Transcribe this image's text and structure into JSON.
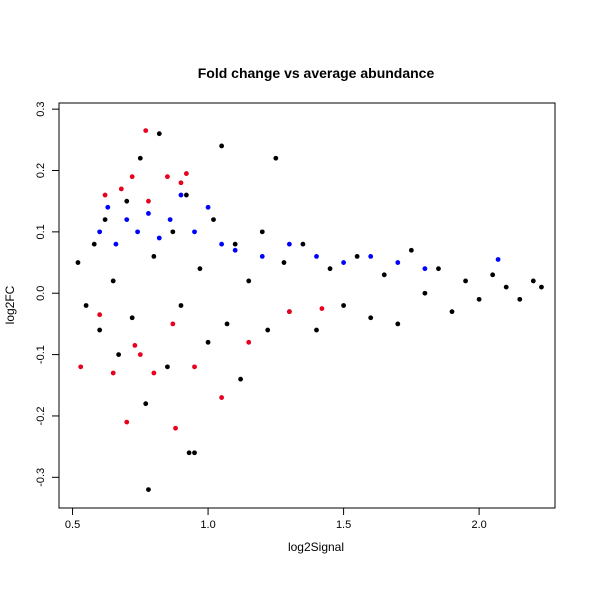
{
  "chart_data": {
    "type": "scatter",
    "title": "Fold change vs average abundance",
    "xlabel": "log2Signal",
    "ylabel": "log2FC",
    "xlim": [
      0.45,
      2.28
    ],
    "ylim": [
      -0.35,
      0.31
    ],
    "x_ticks": [
      0.5,
      1.0,
      1.5,
      2.0
    ],
    "x_tick_labels": [
      "0.5",
      "1.0",
      "1.5",
      "2.0"
    ],
    "y_ticks": [
      -0.3,
      -0.2,
      -0.1,
      0.0,
      0.1,
      0.2,
      0.3
    ],
    "y_tick_labels": [
      "-0.3",
      "-0.2",
      "-0.1",
      "0.0",
      "0.1",
      "0.2",
      "0.3"
    ],
    "grid": false,
    "legend": "none",
    "series": [
      {
        "color": "#000000",
        "points": [
          [
            0.52,
            0.05
          ],
          [
            0.55,
            -0.02
          ],
          [
            0.58,
            0.08
          ],
          [
            0.6,
            -0.06
          ],
          [
            0.62,
            0.12
          ],
          [
            0.65,
            0.02
          ],
          [
            0.67,
            -0.1
          ],
          [
            0.7,
            0.15
          ],
          [
            0.72,
            -0.04
          ],
          [
            0.75,
            0.22
          ],
          [
            0.77,
            -0.18
          ],
          [
            0.8,
            0.06
          ],
          [
            0.82,
            0.26
          ],
          [
            0.85,
            -0.12
          ],
          [
            0.87,
            0.1
          ],
          [
            0.9,
            -0.02
          ],
          [
            0.92,
            0.16
          ],
          [
            0.95,
            -0.26
          ],
          [
            0.97,
            0.04
          ],
          [
            1.0,
            -0.08
          ],
          [
            1.02,
            0.12
          ],
          [
            1.05,
            0.24
          ],
          [
            1.07,
            -0.05
          ],
          [
            1.1,
            0.08
          ],
          [
            1.12,
            -0.14
          ],
          [
            1.15,
            0.02
          ],
          [
            1.2,
            0.1
          ],
          [
            1.22,
            -0.06
          ],
          [
            1.25,
            0.22
          ],
          [
            1.28,
            0.05
          ],
          [
            1.3,
            -0.03
          ],
          [
            1.35,
            0.08
          ],
          [
            1.4,
            -0.06
          ],
          [
            1.45,
            0.04
          ],
          [
            1.5,
            -0.02
          ],
          [
            1.55,
            0.06
          ],
          [
            1.6,
            -0.04
          ],
          [
            1.65,
            0.03
          ],
          [
            1.7,
            -0.05
          ],
          [
            1.75,
            0.07
          ],
          [
            1.8,
            0.0
          ],
          [
            1.85,
            0.04
          ],
          [
            1.9,
            -0.03
          ],
          [
            1.95,
            0.02
          ],
          [
            2.0,
            -0.01
          ],
          [
            2.05,
            0.03
          ],
          [
            2.1,
            0.01
          ],
          [
            2.15,
            -0.01
          ],
          [
            2.2,
            0.02
          ],
          [
            2.23,
            0.01
          ],
          [
            0.78,
            -0.32
          ],
          [
            0.93,
            -0.26
          ]
        ]
      },
      {
        "color": "#0000ff",
        "points": [
          [
            0.6,
            0.1
          ],
          [
            0.63,
            0.14
          ],
          [
            0.66,
            0.08
          ],
          [
            0.7,
            0.12
          ],
          [
            0.74,
            0.1
          ],
          [
            0.78,
            0.13
          ],
          [
            0.82,
            0.09
          ],
          [
            0.86,
            0.12
          ],
          [
            0.9,
            0.16
          ],
          [
            0.95,
            0.1
          ],
          [
            1.0,
            0.14
          ],
          [
            1.05,
            0.08
          ],
          [
            1.1,
            0.07
          ],
          [
            1.2,
            0.06
          ],
          [
            1.3,
            0.08
          ],
          [
            1.4,
            0.06
          ],
          [
            1.5,
            0.05
          ],
          [
            1.6,
            0.06
          ],
          [
            1.7,
            0.05
          ],
          [
            1.8,
            0.04
          ],
          [
            2.07,
            0.055
          ]
        ]
      },
      {
        "color": "#e8001c",
        "points": [
          [
            0.53,
            -0.12
          ],
          [
            0.6,
            -0.035
          ],
          [
            0.62,
            0.16
          ],
          [
            0.65,
            -0.13
          ],
          [
            0.68,
            0.17
          ],
          [
            0.7,
            -0.21
          ],
          [
            0.72,
            0.19
          ],
          [
            0.75,
            -0.1
          ],
          [
            0.77,
            0.265
          ],
          [
            0.78,
            0.15
          ],
          [
            0.8,
            -0.13
          ],
          [
            0.85,
            0.19
          ],
          [
            0.87,
            -0.05
          ],
          [
            0.88,
            -0.22
          ],
          [
            0.9,
            0.18
          ],
          [
            0.95,
            -0.12
          ],
          [
            1.05,
            -0.17
          ],
          [
            1.15,
            -0.08
          ],
          [
            1.3,
            -0.03
          ],
          [
            1.42,
            -0.025
          ],
          [
            0.73,
            -0.085
          ],
          [
            0.92,
            0.195
          ]
        ]
      }
    ]
  }
}
